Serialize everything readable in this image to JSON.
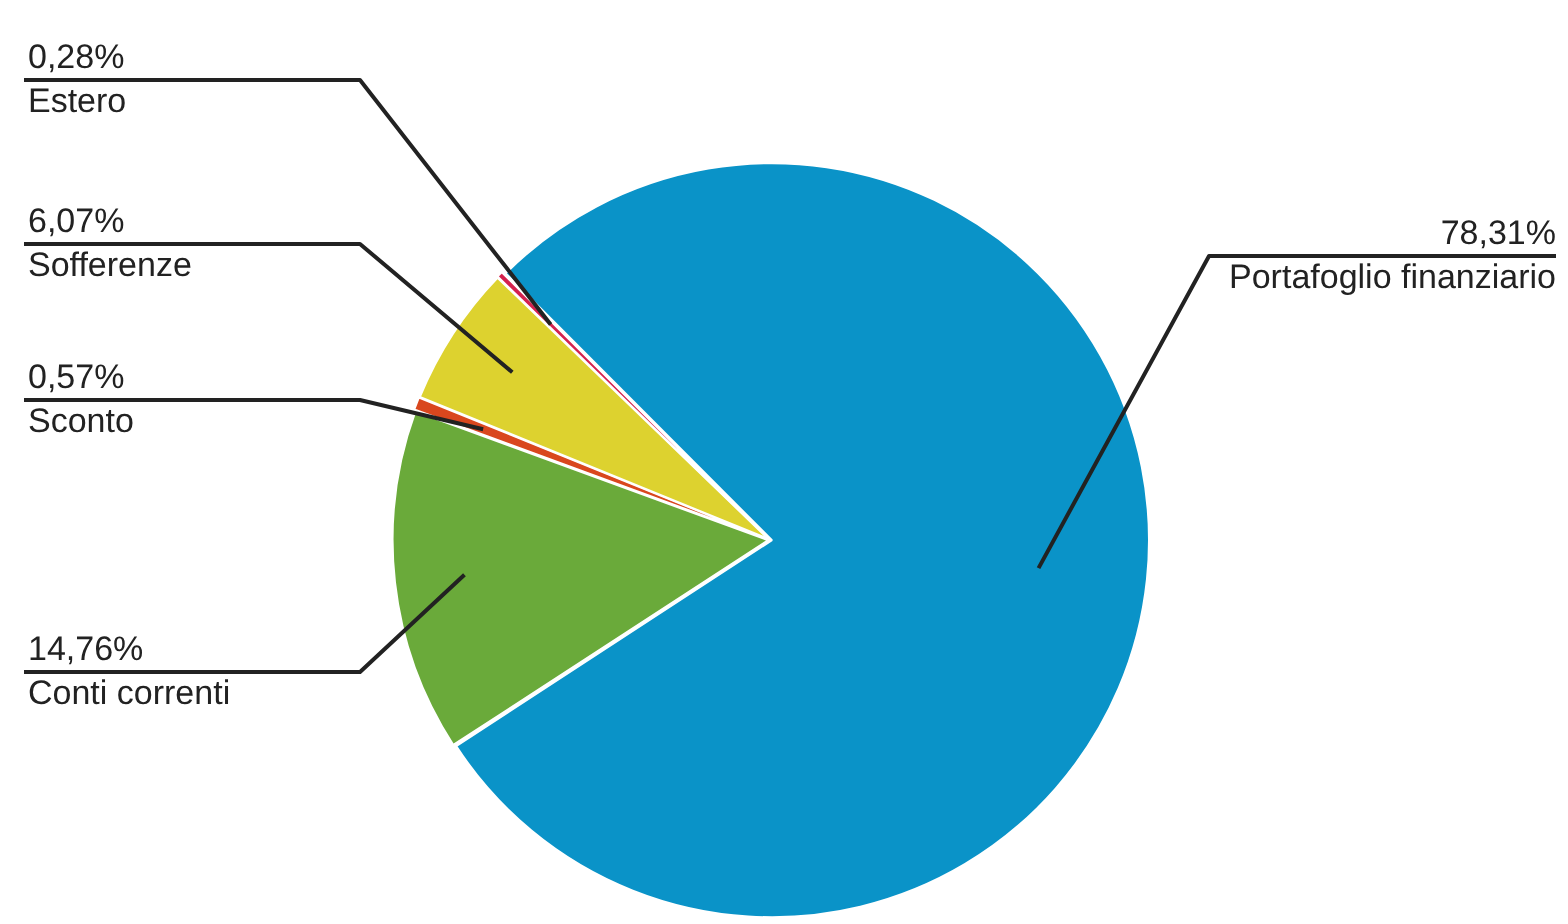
{
  "chart_data": {
    "type": "pie",
    "categories": [
      "Portafoglio finanziario",
      "Conti correnti",
      "Sconto",
      "Sofferenze",
      "Estero"
    ],
    "values": [
      78.31,
      14.76,
      0.57,
      6.07,
      0.28
    ],
    "value_labels": [
      "78,31%",
      "14,76%",
      "0,57%",
      "6,07%",
      "0,28%"
    ],
    "colors": [
      "#0a93c8",
      "#6aaa3a",
      "#d9471e",
      "#ddd22f",
      "#d4214e"
    ],
    "legend": false
  }
}
